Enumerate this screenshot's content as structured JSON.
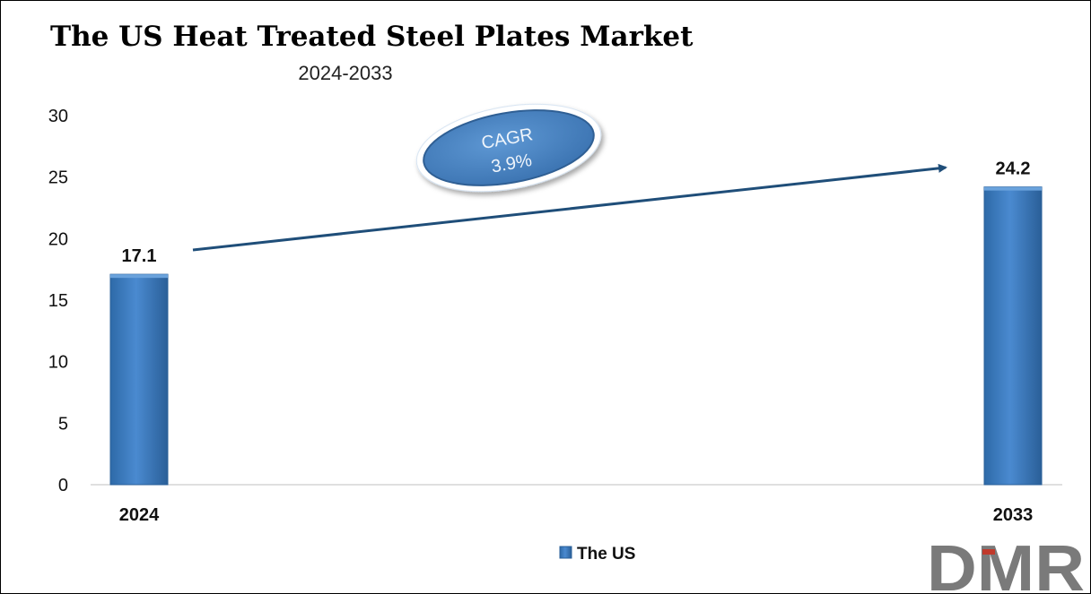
{
  "chart_data": {
    "type": "bar",
    "title": "The US Heat Treated Steel Plates Market",
    "subtitle": "2024-2033",
    "categories": [
      "2024",
      "2033"
    ],
    "series": [
      {
        "name": "The US",
        "values": [
          17.1,
          24.2
        ],
        "color": "#3a78b8"
      }
    ],
    "data_labels": [
      "17.1",
      "24.2"
    ],
    "ylim": [
      0,
      30
    ],
    "yticks": [
      0,
      5,
      10,
      15,
      20,
      25,
      30
    ],
    "ytick_labels": [
      "0",
      "5",
      "10",
      "15",
      "20",
      "25",
      "30"
    ],
    "grid": false,
    "legend_position": "bottom-center",
    "annotation": {
      "line1": "CAGR",
      "line2": "3.9%"
    }
  },
  "brand": {
    "logo_text": "DMR",
    "logo_color": "#7a7a7a",
    "logo_accent": "#c0392b"
  },
  "colors": {
    "arrow": "#1f4e79",
    "bubble": "#4a86c5"
  }
}
